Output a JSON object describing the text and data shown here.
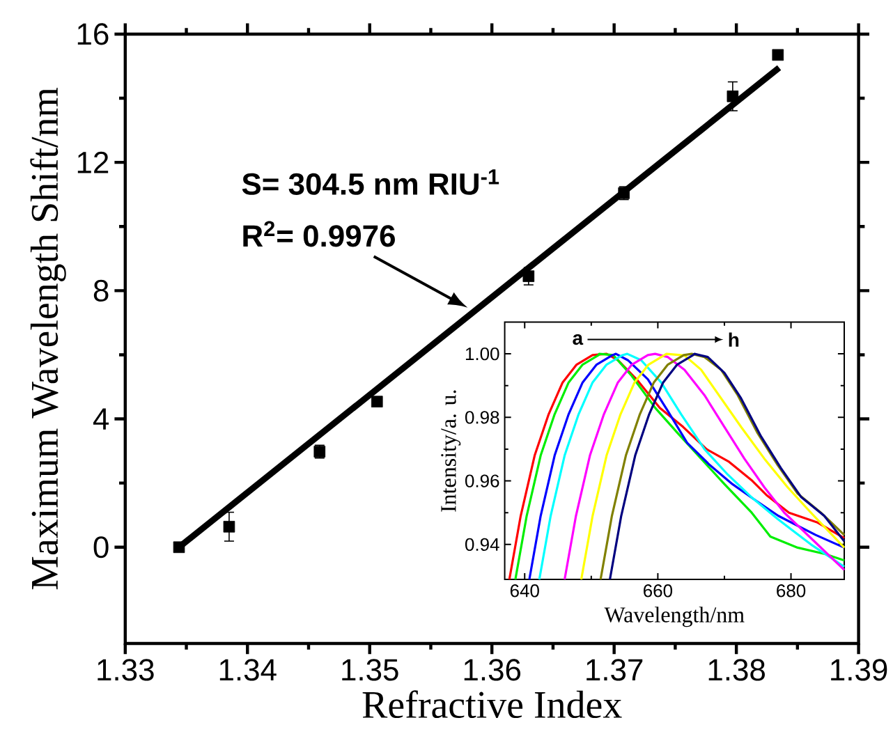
{
  "chart_data": [
    {
      "type": "scatter",
      "xlabel": "Refractive Index",
      "ylabel": "Maximum Wavelength Shift/nm",
      "annotations": [
        "S= 304.5 nm RIU$^{-1}$",
        "R$^{2}$= 0.9976"
      ],
      "x": [
        1.3344,
        1.3385,
        1.3459,
        1.3506,
        1.363,
        1.3708,
        1.3797,
        1.3834
      ],
      "series": [
        {
          "color": "#000000",
          "marker": "square",
          "values": [
            0,
            0.64,
            2.98,
            4.54,
            8.45,
            11.04,
            14.06,
            15.35
          ],
          "errors": [
            0.1,
            0.45,
            0.2,
            0.1,
            0.27,
            0.2,
            0.45,
            0.1
          ]
        },
        {
          "type": "line",
          "color": "#000000",
          "x": [
            1.3344,
            1.3835
          ],
          "values": [
            0,
            14.95
          ]
        }
      ],
      "xlim": [
        1.33,
        1.39
      ],
      "ylim": [
        -3,
        16
      ],
      "xticks": [
        1.33,
        1.34,
        1.35,
        1.36,
        1.37,
        1.38,
        1.39
      ],
      "yticks": [
        0,
        4,
        8,
        12,
        16
      ]
    },
    {
      "type": "line",
      "xlabel": "Wavelength/nm",
      "ylabel": "Intensity/a. u.",
      "annotations": [
        "a",
        "h"
      ],
      "series": [
        {
          "color": "#ff0000",
          "x": [
            637.7,
            639.4,
            641.5,
            643.6,
            645.7,
            647.8,
            650.2,
            652.3,
            654,
            656.8,
            660.3,
            663.8,
            667.3,
            670.7,
            674.2,
            676.3,
            679.7,
            683.9,
            688
          ],
          "values": [
            0.929,
            0.949,
            0.968,
            0.981,
            0.991,
            0.9966,
            0.9996,
            1.0,
            0.998,
            0.992,
            0.983,
            0.977,
            0.97,
            0.966,
            0.96,
            0.9556,
            0.95,
            0.947,
            0.942
          ]
        },
        {
          "color": "#00ee00",
          "x": [
            638.6,
            640.3,
            642.4,
            644.5,
            646.6,
            648.7,
            651.1,
            651.2,
            653.3,
            656.1,
            659.6,
            663,
            666.5,
            670,
            674.1,
            676.9,
            681,
            685.1,
            688
          ],
          "values": [
            0.929,
            0.949,
            0.968,
            0.981,
            0.991,
            0.9966,
            0.9996,
            1.0,
            0.9996,
            0.993,
            0.983,
            0.975,
            0.967,
            0.959,
            0.95,
            0.9425,
            0.939,
            0.937,
            0.935
          ]
        },
        {
          "color": "#0000ff",
          "x": [
            640.7,
            642.4,
            644.5,
            646.6,
            648.7,
            650.8,
            653.2,
            653.7,
            655.5,
            658.5,
            661.5,
            664.4,
            667.8,
            671.2,
            674.6,
            678.1,
            683.7,
            688
          ],
          "values": [
            0.929,
            0.949,
            0.968,
            0.981,
            0.991,
            0.9966,
            0.9996,
            1.0,
            0.998,
            0.992,
            0.982,
            0.972,
            0.965,
            0.959,
            0.954,
            0.949,
            0.943,
            0.939
          ]
        },
        {
          "color": "#00ffff",
          "x": [
            642.2,
            643.9,
            646,
            648.1,
            650.2,
            652.3,
            654.7,
            655.4,
            657.5,
            660.5,
            663.5,
            667,
            670.5,
            674,
            678,
            683,
            688
          ],
          "values": [
            0.929,
            0.949,
            0.968,
            0.981,
            0.991,
            0.9966,
            0.9996,
            1.0,
            0.998,
            0.991,
            0.981,
            0.97,
            0.962,
            0.955,
            0.948,
            0.94,
            0.933
          ]
        },
        {
          "color": "#ff00ff",
          "x": [
            646,
            647.7,
            649.8,
            651.9,
            654,
            656.1,
            658.5,
            659.6,
            661.5,
            664,
            667,
            670,
            673,
            676,
            679,
            683,
            688
          ],
          "values": [
            0.929,
            0.949,
            0.968,
            0.981,
            0.991,
            0.9966,
            0.9996,
            1.0,
            0.999,
            0.995,
            0.987,
            0.977,
            0.967,
            0.958,
            0.95,
            0.942,
            0.932
          ]
        },
        {
          "color": "#ffff00",
          "x": [
            648.5,
            650.2,
            652.3,
            654.4,
            656.5,
            658.6,
            661,
            661.3,
            664,
            666.5,
            669.5,
            672.5,
            676,
            679.5,
            683,
            688
          ],
          "values": [
            0.929,
            0.949,
            0.968,
            0.981,
            0.991,
            0.9966,
            0.9996,
            1.0,
            0.9995,
            0.995,
            0.986,
            0.977,
            0.967,
            0.958,
            0.95,
            0.939
          ]
        },
        {
          "color": "#808000",
          "x": [
            651.4,
            653.1,
            655.2,
            657.3,
            659.4,
            661.5,
            663.9,
            665.1,
            667,
            669.5,
            672,
            675,
            678,
            681,
            684.5,
            688
          ],
          "values": [
            0.929,
            0.949,
            0.968,
            0.981,
            0.991,
            0.9966,
            0.9996,
            1.0,
            0.999,
            0.995,
            0.987,
            0.975,
            0.965,
            0.956,
            0.95,
            0.943
          ]
        },
        {
          "color": "#000080",
          "x": [
            652.8,
            654.5,
            656.6,
            658.7,
            660.8,
            662.9,
            665.3,
            665.5,
            667.5,
            670,
            672.5,
            675.5,
            678.5,
            681.5,
            685,
            688
          ],
          "values": [
            0.929,
            0.949,
            0.968,
            0.981,
            0.991,
            0.9966,
            0.9996,
            1.0,
            0.999,
            0.994,
            0.986,
            0.974,
            0.964,
            0.955,
            0.949,
            0.941
          ]
        }
      ],
      "xlim": [
        637,
        688
      ],
      "ylim": [
        0.929,
        1.01
      ],
      "xticks": [
        640,
        660,
        680
      ],
      "yticks": [
        {
          "value": 0.94,
          "label": "0.94"
        },
        {
          "value": 0.96,
          "label": "0.96"
        },
        {
          "value": 0.98,
          "label": "0.98"
        },
        {
          "value": 1.0,
          "label": "1.00"
        }
      ]
    }
  ]
}
